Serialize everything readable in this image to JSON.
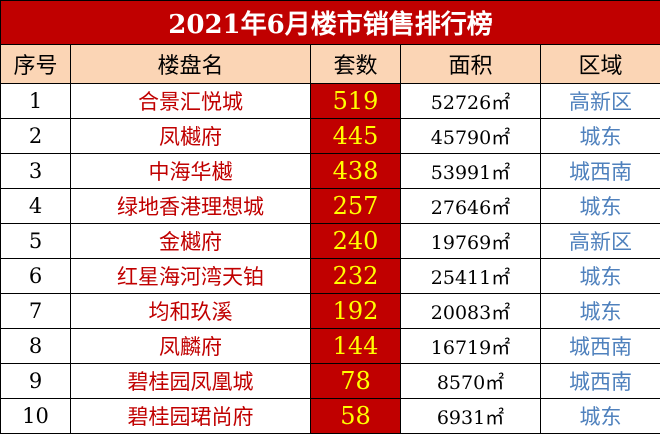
{
  "header": {
    "title": "2021年6月楼市销售排行榜"
  },
  "table": {
    "columns": [
      "序号",
      "楼盘名",
      "套数",
      "面积",
      "区域"
    ],
    "rows": [
      [
        1,
        "合景汇悦城",
        519,
        "52726㎡",
        "高新区"
      ],
      [
        2,
        "凤樾府",
        445,
        "45790㎡",
        "城东"
      ],
      [
        3,
        "中海华樾",
        438,
        "53991㎡",
        "城西南"
      ],
      [
        4,
        "绿地香港理想城",
        257,
        "27646㎡",
        "城东"
      ],
      [
        5,
        "金樾府",
        240,
        "19769㎡",
        "高新区"
      ],
      [
        6,
        "红星海河湾天铂",
        232,
        "25411㎡",
        "城东"
      ],
      [
        7,
        "均和玖溪",
        192,
        "20083㎡",
        "城东"
      ],
      [
        8,
        "凤麟府",
        144,
        "16719㎡",
        "城西南"
      ],
      [
        9,
        "碧桂园凤凰城",
        78,
        "8570㎡",
        "城西南"
      ],
      [
        10,
        "碧桂园珺尚府",
        58,
        "6931㎡",
        "城东"
      ]
    ]
  }
}
